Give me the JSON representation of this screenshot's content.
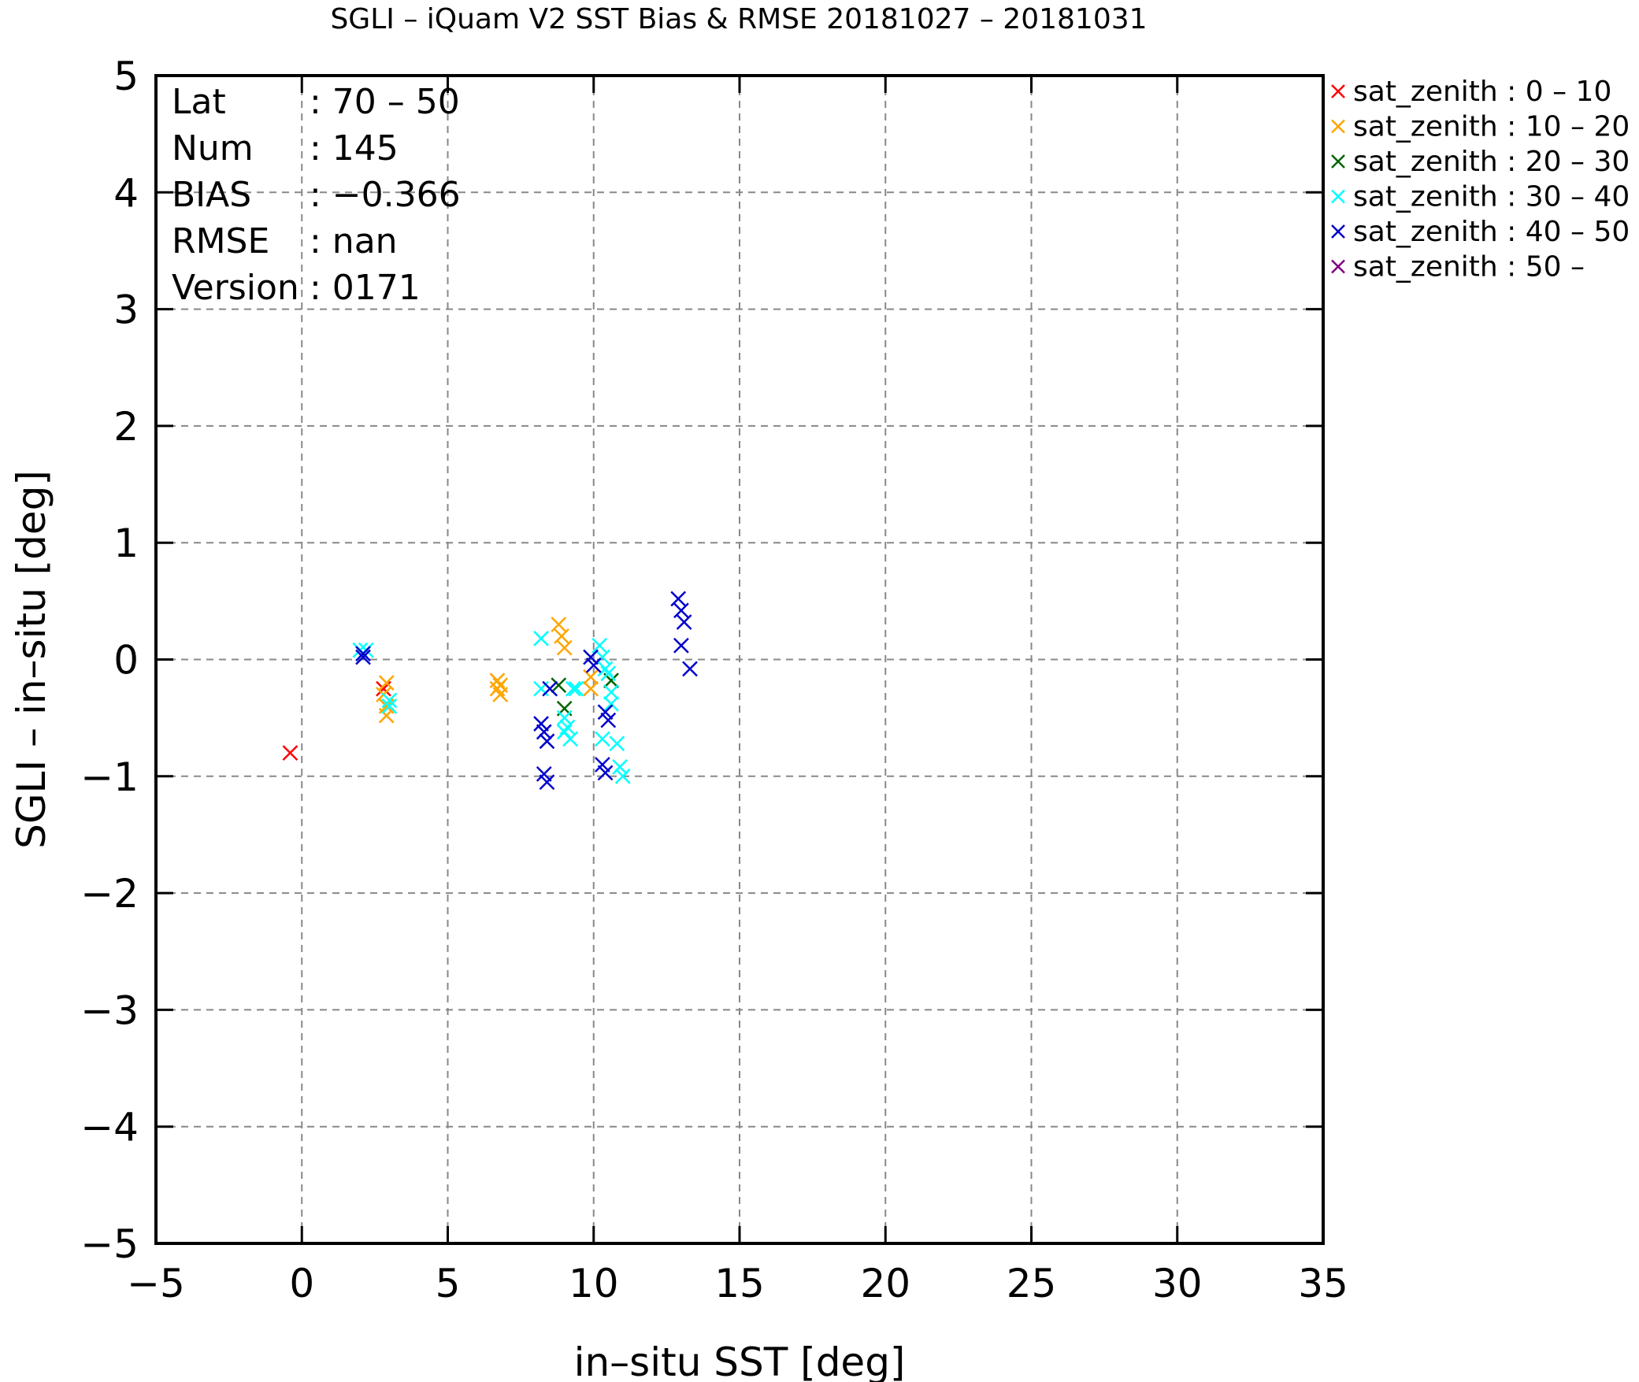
{
  "chart_data": {
    "type": "scatter",
    "title": "SGLI – iQuam V2 SST Bias & RMSE 20181027 – 20181031",
    "xlabel": "in–situ SST [deg]",
    "ylabel": "SGLI – in–situ [deg]",
    "xlim": [
      -5,
      35
    ],
    "ylim": [
      -5,
      5
    ],
    "xticks": [
      -5,
      0,
      5,
      10,
      15,
      20,
      25,
      30,
      35
    ],
    "yticks": [
      -5,
      -4,
      -3,
      -2,
      -1,
      0,
      1,
      2,
      3,
      4,
      5
    ],
    "xtick_labels": [
      "−5",
      "0",
      "5",
      "10",
      "15",
      "20",
      "25",
      "30",
      "35"
    ],
    "ytick_labels": [
      "−5",
      "−4",
      "−3",
      "−2",
      "−1",
      "0",
      "1",
      "2",
      "3",
      "4",
      "5"
    ],
    "grid": true,
    "legend_position": "outside-top-right",
    "stats": [
      {
        "key": "Lat",
        "value": ": 70 – 50"
      },
      {
        "key": "Num",
        "value": ": 145"
      },
      {
        "key": "BIAS",
        "value": ": −0.366"
      },
      {
        "key": "RMSE",
        "value": ": nan"
      },
      {
        "key": "Version",
        "value": ": 0171"
      }
    ],
    "series": [
      {
        "name": "sat_zenith :  0 – 10",
        "color": "#ff0000",
        "points": [
          [
            -0.4,
            -0.8
          ],
          [
            2.8,
            -0.25
          ]
        ]
      },
      {
        "name": "sat_zenith : 10 – 20",
        "color": "#ffa500",
        "points": [
          [
            2.9,
            -0.2
          ],
          [
            2.8,
            -0.3
          ],
          [
            2.9,
            -0.4
          ],
          [
            2.9,
            -0.48
          ],
          [
            6.7,
            -0.18
          ],
          [
            6.8,
            -0.22
          ],
          [
            6.7,
            -0.25
          ],
          [
            6.8,
            -0.3
          ],
          [
            8.8,
            0.3
          ],
          [
            8.9,
            0.2
          ],
          [
            9.0,
            0.1
          ],
          [
            9.9,
            -0.15
          ],
          [
            9.9,
            -0.25
          ]
        ]
      },
      {
        "name": "sat_zenith : 20 – 30",
        "color": "#006400",
        "points": [
          [
            8.8,
            -0.22
          ],
          [
            9.0,
            -0.42
          ],
          [
            10.6,
            -0.18
          ]
        ]
      },
      {
        "name": "sat_zenith : 30 – 40",
        "color": "#00ffff",
        "points": [
          [
            2.0,
            0.08
          ],
          [
            2.2,
            0.08
          ],
          [
            3.0,
            -0.35
          ],
          [
            3.0,
            -0.4
          ],
          [
            8.2,
            0.18
          ],
          [
            8.2,
            -0.25
          ],
          [
            9.0,
            -0.5
          ],
          [
            9.1,
            -0.58
          ],
          [
            9.0,
            -0.62
          ],
          [
            9.2,
            -0.68
          ],
          [
            9.3,
            -0.25
          ],
          [
            9.4,
            -0.25
          ],
          [
            10.2,
            0.12
          ],
          [
            10.3,
            0.02
          ],
          [
            10.4,
            -0.08
          ],
          [
            10.5,
            -0.12
          ],
          [
            10.6,
            -0.28
          ],
          [
            10.6,
            -0.38
          ],
          [
            10.3,
            -0.68
          ],
          [
            10.8,
            -0.72
          ],
          [
            10.9,
            -0.92
          ],
          [
            11.0,
            -1.0
          ]
        ]
      },
      {
        "name": "sat_zenith : 40 – 50",
        "color": "#0000cd",
        "points": [
          [
            2.1,
            0.05
          ],
          [
            2.1,
            0.02
          ],
          [
            8.5,
            -0.25
          ],
          [
            8.2,
            -0.55
          ],
          [
            8.3,
            -0.62
          ],
          [
            8.4,
            -0.7
          ],
          [
            8.3,
            -0.98
          ],
          [
            8.4,
            -1.05
          ],
          [
            9.9,
            0.02
          ],
          [
            10.0,
            -0.05
          ],
          [
            10.4,
            -0.45
          ],
          [
            10.5,
            -0.52
          ],
          [
            10.3,
            -0.9
          ],
          [
            10.4,
            -0.97
          ],
          [
            12.9,
            0.52
          ],
          [
            13.1,
            0.32
          ],
          [
            13.0,
            0.12
          ],
          [
            13.3,
            -0.08
          ],
          [
            13.0,
            0.42
          ]
        ]
      },
      {
        "name": "sat_zenith : 50 –",
        "color": "#800080",
        "points": []
      }
    ]
  }
}
